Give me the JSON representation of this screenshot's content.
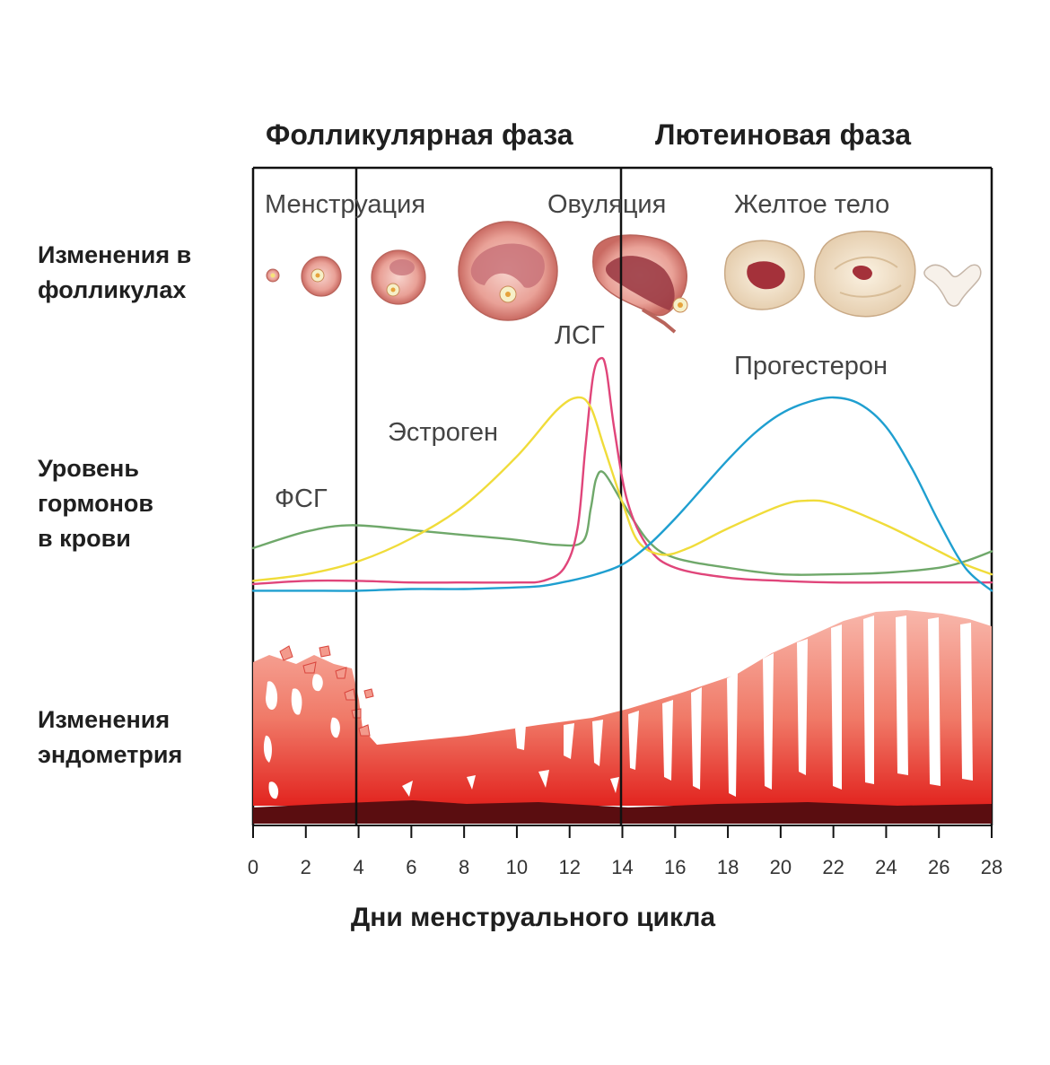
{
  "phases": {
    "follicular": "Фолликулярная фаза",
    "luteal": "Лютеиновая фаза"
  },
  "row_labels": {
    "follicles": [
      "Изменения в",
      "фолликулах"
    ],
    "hormones": [
      "Уровень",
      "гормонов",
      "в крови"
    ],
    "endometrium": [
      "Изменения",
      "эндометрия"
    ]
  },
  "stage_labels": {
    "menstruation": "Менструация",
    "ovulation": "Овуляция",
    "corpus_luteum": "Желтое тело"
  },
  "colors": {
    "fsh": "#6fa86a",
    "lh": "#e0457a",
    "estrogen": "#f0dc3a",
    "progesterone": "#1f9fd0",
    "endometrium_light": "#f7b2a6",
    "endometrium_dark": "#e5302a",
    "endometrium_base": "#5a0d10",
    "follicle": "#e8a49a",
    "corpus": "#f4e6cf"
  },
  "chart_data": {
    "type": "line",
    "xlabel": "Дни менструального цикла",
    "ylabel": "",
    "xlim": [
      0,
      28
    ],
    "x_ticks": [
      "0",
      "2",
      "4",
      "6",
      "8",
      "10",
      "12",
      "14",
      "16",
      "18",
      "20",
      "22",
      "24",
      "26",
      "28"
    ],
    "phase_boundaries": [
      4,
      14
    ],
    "series": [
      {
        "name": "ФСГ",
        "key": "fsh",
        "x": [
          0,
          2,
          3.7,
          6,
          8,
          10,
          11.5,
          12.5,
          12.8,
          13.0,
          13.3,
          14,
          15,
          16,
          18,
          20,
          22,
          24,
          26,
          27,
          28
        ],
        "y": [
          14,
          19,
          21,
          19.5,
          18,
          16.5,
          15,
          16,
          26,
          35,
          37,
          28,
          16,
          11,
          8,
          6,
          6,
          6.5,
          8,
          10,
          13
        ]
      },
      {
        "name": "ЛСГ",
        "key": "lh",
        "x": [
          0,
          2,
          4,
          6,
          8,
          10,
          11,
          11.8,
          12.3,
          12.6,
          12.9,
          13.2,
          13.4,
          13.7,
          14.2,
          15,
          16,
          18,
          20,
          22,
          24,
          26,
          28
        ],
        "y": [
          3,
          4,
          4,
          3.5,
          3.5,
          3.5,
          4,
          8,
          20,
          45,
          67,
          72,
          68,
          50,
          28,
          14,
          8,
          5,
          4,
          3.5,
          3.5,
          3.5,
          3.5
        ]
      },
      {
        "name": "Эстроген",
        "key": "estrogen",
        "x": [
          0,
          2,
          4,
          6,
          8,
          10,
          11.5,
          12.3,
          12.8,
          13.3,
          14,
          14.6,
          15.5,
          16.5,
          18,
          20,
          21,
          22,
          24,
          26,
          27,
          28
        ],
        "y": [
          4,
          6,
          10,
          17,
          27,
          42,
          56,
          60,
          57,
          45,
          28,
          16,
          12,
          14,
          20,
          27,
          28.5,
          27.5,
          21,
          13,
          9,
          6
        ]
      },
      {
        "name": "Прогестерон",
        "key": "progesterone",
        "x": [
          0,
          2,
          4,
          6,
          8,
          10,
          11,
          12,
          13,
          14,
          15,
          16,
          17,
          18,
          19,
          20,
          21,
          22,
          23,
          24,
          25,
          26,
          27,
          28
        ],
        "y": [
          1,
          1,
          1,
          1.5,
          1.5,
          2,
          2.5,
          4,
          6,
          9,
          15,
          23,
          32,
          41,
          49,
          55,
          58.5,
          60,
          58,
          51,
          38,
          22,
          8,
          1
        ]
      }
    ],
    "series_labels": [
      "ФСГ",
      "ЛСГ",
      "Эстроген",
      "Прогестерон"
    ]
  }
}
